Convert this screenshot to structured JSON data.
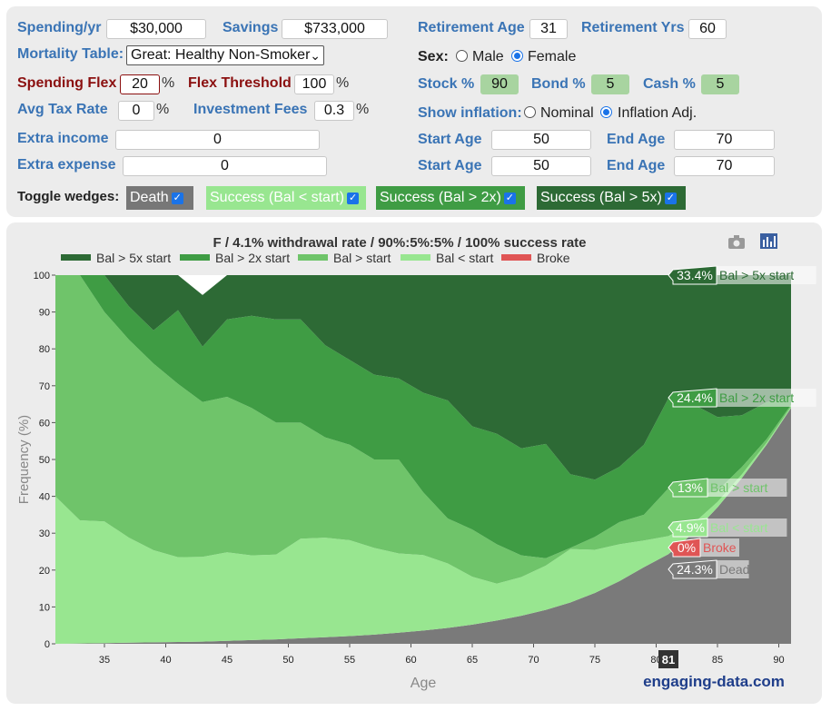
{
  "inputs": {
    "spending_label": "Spending/yr",
    "spending_value": "$30,000",
    "savings_label": "Savings",
    "savings_value": "$733,000",
    "mortality_label": "Mortality Table:",
    "mortality_value": "Great: Healthy Non-Smoker",
    "flex_label": "Spending Flex",
    "flex_value": "20",
    "threshold_label": "Flex Threshold",
    "threshold_value": "100",
    "tax_label": "Avg Tax Rate",
    "tax_value": "0",
    "fees_label": "Investment Fees",
    "fees_value": "0.3",
    "extra_income_label": "Extra income",
    "extra_income_value": "0",
    "extra_expense_label": "Extra expense",
    "extra_expense_value": "0",
    "retire_age_label": "Retirement Age",
    "retire_age_value": "31",
    "retire_yrs_label": "Retirement Yrs",
    "retire_yrs_value": "60",
    "sex_label": "Sex:",
    "sex_male": "Male",
    "sex_female": "Female",
    "stock_label": "Stock %",
    "stock_value": "90",
    "bond_label": "Bond %",
    "bond_value": "5",
    "cash_label": "Cash %",
    "cash_value": "5",
    "inflation_label": "Show inflation:",
    "inflation_nominal": "Nominal",
    "inflation_adj": "Inflation Adj.",
    "start_age_label": "Start Age",
    "start_age_1": "50",
    "start_age_2": "50",
    "end_age_label": "End Age",
    "end_age_1": "70",
    "end_age_2": "70",
    "percent_sign": "%"
  },
  "toggles": {
    "label": "Toggle wedges:",
    "death": "Death",
    "success_lt": "Success (Bal < start)",
    "success_gt2": "Success (Bal > 2x)",
    "success_gt5": "Success (Bal > 5x)"
  },
  "colors": {
    "dead": "#7a7a7a",
    "broke": "#e05555",
    "bal_lt_start": "#98e690",
    "bal_gt_start": "#6fc46a",
    "bal_gt_2x": "#3f9c44",
    "bal_gt_5x": "#2d6a35"
  },
  "icons": {
    "camera": "camera-icon",
    "chart": "bar-chart-icon"
  },
  "watermark": "engaging-data.com",
  "chart_data": {
    "type": "area",
    "title": "F / 4.1% withdrawal rate / 90%:5%:5% / 100% success rate",
    "xlabel": "Age",
    "ylabel": "Frequency (%)",
    "xlim": [
      31,
      91
    ],
    "ylim": [
      0,
      100
    ],
    "xticks": [
      35,
      40,
      45,
      50,
      55,
      60,
      65,
      70,
      75,
      80,
      85,
      90
    ],
    "yticks": [
      0,
      10,
      20,
      30,
      40,
      50,
      60,
      70,
      80,
      90,
      100
    ],
    "highlight_x": "81",
    "legend_position": "top",
    "x": [
      31,
      33,
      35,
      37,
      39,
      41,
      43,
      45,
      47,
      49,
      51,
      53,
      55,
      57,
      59,
      61,
      63,
      65,
      67,
      69,
      71,
      73,
      75,
      77,
      79,
      81,
      83,
      85,
      87,
      89,
      91
    ],
    "series": [
      {
        "name": "Dead",
        "values": [
          0,
          0.1,
          0.2,
          0.3,
          0.4,
          0.5,
          0.6,
          0.8,
          1.0,
          1.2,
          1.5,
          1.8,
          2.1,
          2.5,
          3.0,
          3.6,
          4.3,
          5.2,
          6.3,
          7.6,
          9.2,
          11.2,
          13.8,
          17.0,
          20.8,
          24.3,
          30.0,
          37.0,
          45.0,
          54.0,
          64.0
        ]
      },
      {
        "name": "Broke",
        "values": [
          0,
          0,
          0,
          0,
          0,
          0,
          0,
          0,
          0,
          0,
          0,
          0,
          0,
          0,
          0,
          0,
          0,
          0,
          0,
          0,
          0,
          0,
          0,
          0,
          0,
          0,
          0,
          0,
          0,
          0,
          0
        ]
      },
      {
        "name": "Bal < start",
        "values": [
          40,
          33.4,
          33,
          28.5,
          25,
          23,
          23,
          24,
          23,
          23,
          27,
          27,
          26,
          23.5,
          21.5,
          20.5,
          17.5,
          13,
          10,
          10.5,
          12,
          14.5,
          11.7,
          10,
          7.2,
          4.9,
          2.5,
          1.5,
          1.0,
          0.5,
          0.3
        ]
      },
      {
        "name": "Bal > start",
        "values": [
          60,
          66.5,
          56.8,
          53.7,
          50.6,
          47,
          42,
          42.2,
          40,
          35.8,
          31.5,
          27.2,
          25.9,
          24,
          25.5,
          17,
          12.2,
          12.8,
          10.7,
          5.9,
          2,
          0.3,
          3.5,
          6,
          7,
          13,
          7.5,
          3,
          2,
          1,
          0.5
        ]
      },
      {
        "name": "Bal > 2x start",
        "values": [
          0,
          0,
          10,
          9,
          9,
          20,
          15,
          21,
          25,
          28,
          28,
          25,
          23,
          23,
          22,
          27,
          32,
          28,
          30,
          29,
          31,
          20,
          15.5,
          15,
          19,
          24.4,
          25,
          20,
          14,
          10,
          2.5
        ]
      },
      {
        "name": "Bal > 5x start",
        "values": [
          0,
          0,
          0,
          8.5,
          15,
          10,
          14,
          12,
          11,
          12,
          13,
          19,
          23,
          27,
          28,
          32,
          34,
          42,
          43,
          47,
          46,
          54,
          56.2,
          53,
          47,
          33.4,
          35,
          38.5,
          38,
          34.5,
          33.7
        ]
      }
    ],
    "end_labels": [
      {
        "value": "33.4%",
        "label": "Bal > 5x start"
      },
      {
        "value": "24.4%",
        "label": "Bal > 2x start"
      },
      {
        "value": "13%",
        "label": "Bal > start"
      },
      {
        "value": "4.9%",
        "label": "Bal < start"
      },
      {
        "value": "0%",
        "label": "Broke"
      },
      {
        "value": "24.3%",
        "label": "Dead"
      }
    ],
    "legend": [
      "Bal > 5x start",
      "Bal > 2x start",
      "Bal > start",
      "Bal < start",
      "Broke"
    ]
  }
}
